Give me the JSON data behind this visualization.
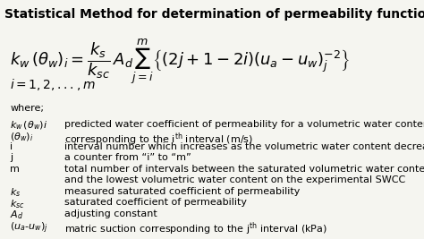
{
  "title": "Statistical Method for determination of permeability function",
  "formula_main": "$k_w(\\theta_w)_i = \\dfrac{k_s}{k_{sc}} A_d \\sum_{j=i}^{m} \\left\\{(2j+1-2i)(u_a - u_w)_j^{-2}\\right\\}$",
  "formula_index": "$i = 1, 2, ..., m$",
  "where_label": "where;",
  "definitions": [
    [
      "$k_w\\,(\\theta_w)i$",
      "predicted water coefficient of permeability for a volumetric water content,"
    ],
    [
      "$(\\theta_w)_i$",
      "corresponding to the i$^{th}$ interval (m/s)"
    ],
    [
      "$i$",
      "interval number which increases as the volumetric water content decreases"
    ],
    [
      "$j$",
      "a counter from “i” to “m”"
    ],
    [
      "$m$",
      "total number of intervals between the saturated volumetric water content"
    ],
    [
      "",
      "and the lowest volumetric water content on the experimental SWCC"
    ],
    [
      "$k_s$",
      "measured saturated coefficient of permeability"
    ],
    [
      "$k_{sc}$",
      "saturated coefficient of permeability"
    ],
    [
      "$A_d$",
      "adjusting constant"
    ],
    [
      "$(u_a\\text{-}u_w)_j$",
      "matric suction corresponding to the j$^{th}$ interval (kPa)"
    ]
  ],
  "bg_color": "#f5f5f0",
  "text_color": "#000000",
  "title_fontsize": 10,
  "formula_fontsize": 14,
  "body_fontsize": 8
}
